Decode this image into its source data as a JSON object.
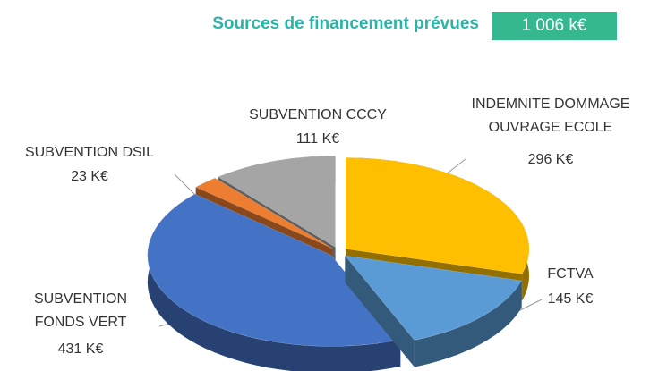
{
  "chart_data": {
    "type": "pie",
    "title": "Sources de financement prévues",
    "total_label": "1 006 k€",
    "categories": [
      "INDEMNITE DOMMAGE OUVRAGE ECOLE",
      "FCTVA",
      "SUBVENTION FONDS VERT",
      "SUBVENTION DSIL",
      "SUBVENTION CCCY"
    ],
    "values": [
      296,
      145,
      431,
      23,
      111
    ],
    "value_labels": [
      "296 K€",
      "145 K€",
      "431 K€",
      "23 K€",
      "111 K€"
    ],
    "colors": [
      "#fdbf00",
      "#5b9bd5",
      "#4472c4",
      "#ed7d31",
      "#a5a5a5"
    ]
  }
}
